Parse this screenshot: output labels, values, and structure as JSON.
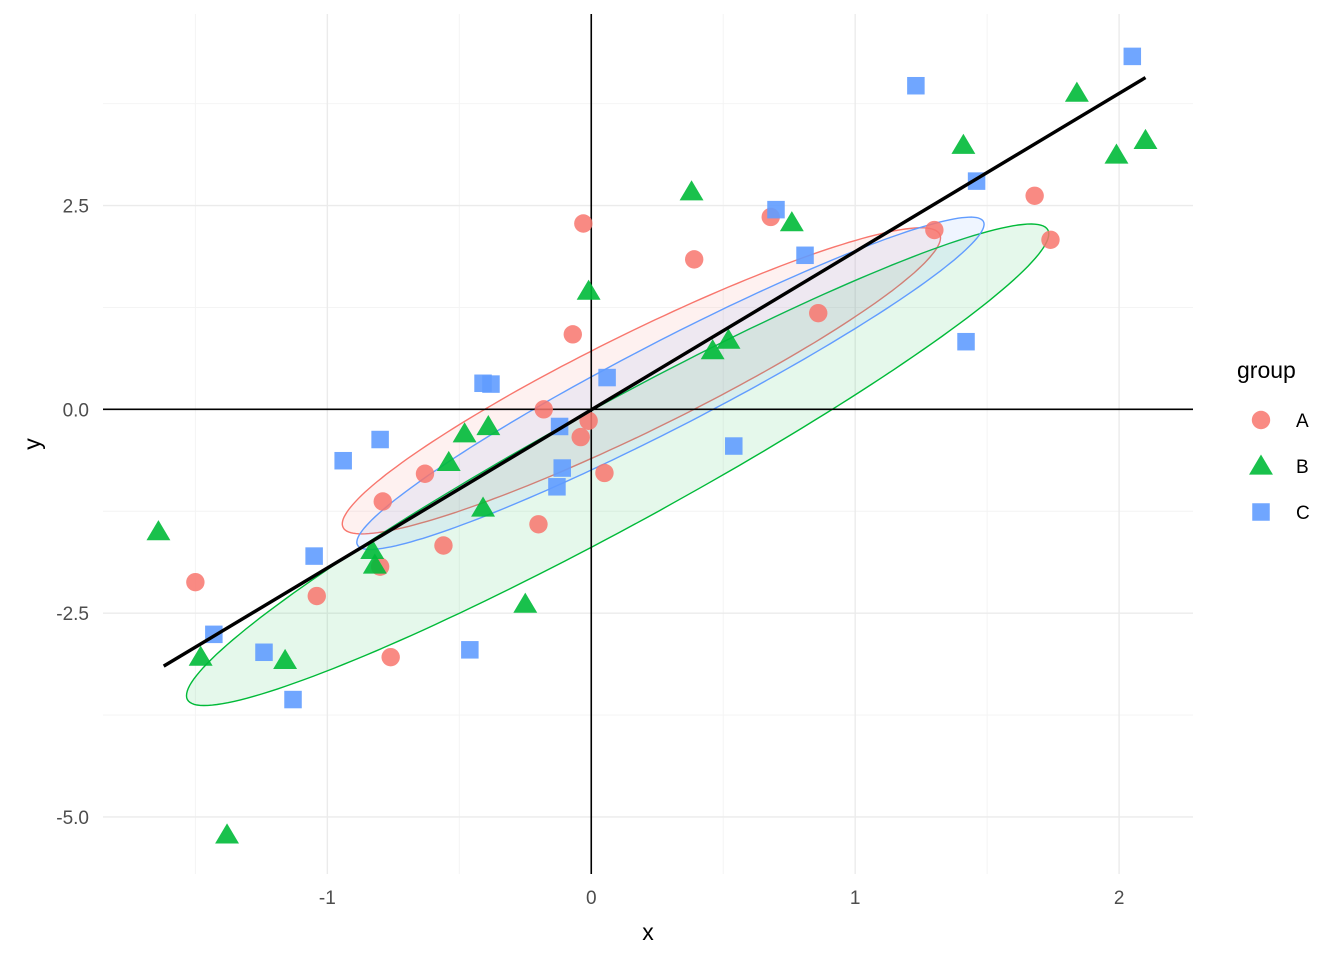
{
  "chart_data": {
    "type": "scatter",
    "xlabel": "x",
    "ylabel": "y",
    "xlim": [
      -1.85,
      2.28
    ],
    "ylim": [
      -5.7,
      4.85
    ],
    "x_ticks": [
      -1,
      0,
      1,
      2
    ],
    "y_ticks": [
      -5.0,
      -2.5,
      0.0,
      2.5
    ],
    "x_tick_labels": [
      "-1",
      "0",
      "1",
      "2"
    ],
    "y_tick_labels": [
      "-5.0",
      "-2.5",
      "0.0",
      "2.5"
    ],
    "grid": true,
    "reference_lines": {
      "x": 0,
      "y": 0
    },
    "legend": {
      "title": "group",
      "position": "right"
    },
    "series": [
      {
        "name": "A",
        "color": "#F8766D",
        "shape": "circle",
        "points": [
          [
            -0.03,
            2.28
          ],
          [
            0.39,
            1.84
          ],
          [
            0.68,
            2.36
          ],
          [
            1.3,
            2.2
          ],
          [
            1.68,
            2.62
          ],
          [
            1.74,
            2.08
          ],
          [
            0.86,
            1.18
          ],
          [
            -0.07,
            0.92
          ],
          [
            -0.18,
            0.0
          ],
          [
            -0.04,
            -0.34
          ],
          [
            -0.01,
            -0.14
          ],
          [
            0.05,
            -0.78
          ],
          [
            -0.63,
            -0.79
          ],
          [
            -0.79,
            -1.13
          ],
          [
            -0.2,
            -1.41
          ],
          [
            -0.56,
            -1.67
          ],
          [
            -0.8,
            -1.93
          ],
          [
            -1.04,
            -2.29
          ],
          [
            -1.5,
            -2.12
          ],
          [
            -0.76,
            -3.04
          ]
        ]
      },
      {
        "name": "B",
        "color": "#00BA38",
        "shape": "triangle",
        "points": [
          [
            0.38,
            2.67
          ],
          [
            0.76,
            2.29
          ],
          [
            1.84,
            3.88
          ],
          [
            1.41,
            3.24
          ],
          [
            1.99,
            3.12
          ],
          [
            2.1,
            3.3
          ],
          [
            -0.01,
            1.45
          ],
          [
            0.46,
            0.72
          ],
          [
            0.52,
            0.85
          ],
          [
            -0.48,
            -0.3
          ],
          [
            -0.39,
            -0.21
          ],
          [
            -0.54,
            -0.65
          ],
          [
            -0.41,
            -1.21
          ],
          [
            -0.83,
            -1.73
          ],
          [
            -0.82,
            -1.91
          ],
          [
            -0.25,
            -2.39
          ],
          [
            -1.64,
            -1.5
          ],
          [
            -1.48,
            -3.04
          ],
          [
            -1.16,
            -3.08
          ],
          [
            -1.38,
            -5.22
          ]
        ]
      },
      {
        "name": "C",
        "color": "#619CFF",
        "shape": "square",
        "points": [
          [
            2.05,
            4.33
          ],
          [
            1.23,
            3.97
          ],
          [
            1.46,
            2.8
          ],
          [
            0.7,
            2.45
          ],
          [
            0.81,
            1.89
          ],
          [
            1.42,
            0.83
          ],
          [
            0.06,
            0.39
          ],
          [
            -0.41,
            0.32
          ],
          [
            -0.38,
            0.31
          ],
          [
            -0.12,
            -0.21
          ],
          [
            -0.11,
            -0.72
          ],
          [
            -0.13,
            -0.95
          ],
          [
            0.54,
            -0.45
          ],
          [
            -0.8,
            -0.37
          ],
          [
            -0.94,
            -0.63
          ],
          [
            -1.05,
            -1.8
          ],
          [
            -1.43,
            -2.76
          ],
          [
            -1.24,
            -2.98
          ],
          [
            -0.46,
            -2.95
          ],
          [
            -1.13,
            -3.56
          ]
        ]
      }
    ],
    "regression_line": {
      "color": "#000000",
      "from": [
        -1.62,
        -3.15
      ],
      "to": [
        2.1,
        4.07
      ]
    },
    "ellipses": [
      {
        "group": "A",
        "stroke": "#F8766D",
        "fill": "#F8766D",
        "center": [
          0.19,
          0.35
        ],
        "semi_major": 2.165,
        "semi_minor": 0.35,
        "angle_deg": 59.7
      },
      {
        "group": "B",
        "stroke": "#00BA38",
        "fill": "#00BA38",
        "center": [
          0.1,
          -0.68
        ],
        "semi_major": 3.35,
        "semi_minor": 0.41,
        "angle_deg": 61.6
      },
      {
        "group": "C",
        "stroke": "#619CFF",
        "fill": "#619CFF",
        "center": [
          0.3,
          0.32
        ],
        "semi_major": 2.34,
        "semi_minor": 0.3,
        "angle_deg": 60.3
      }
    ]
  }
}
